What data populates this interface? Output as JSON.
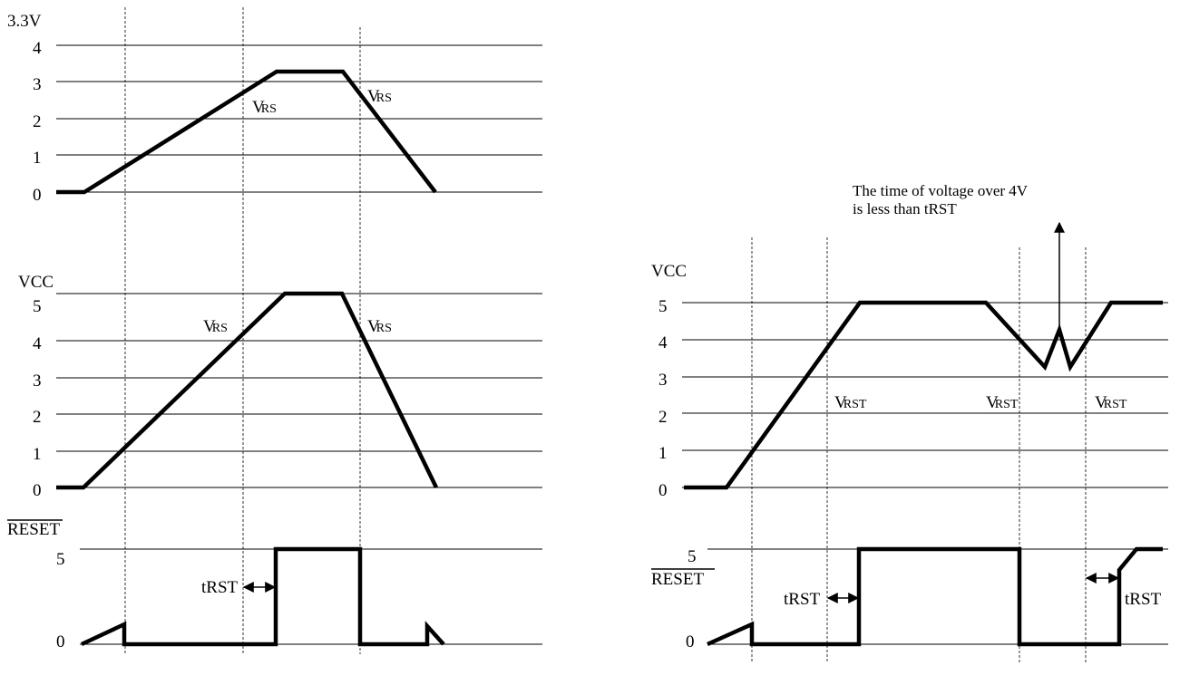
{
  "left": {
    "top_panel": {
      "axis_title": "3.3V",
      "ticks": [
        "4",
        "3",
        "2",
        "1",
        "0"
      ],
      "markers": [
        "V",
        "V"
      ],
      "marker_subs": [
        "RS",
        "RS"
      ]
    },
    "mid_panel": {
      "axis_title": "VCC",
      "ticks": [
        "5",
        "4",
        "3",
        "2",
        "1",
        "0"
      ],
      "markers": [
        "V",
        "V"
      ],
      "marker_subs": [
        "RS",
        "RS"
      ]
    },
    "reset_panel": {
      "axis_title": "RESET",
      "ticks": [
        "5",
        "0"
      ],
      "timing_label": "tRST"
    }
  },
  "right": {
    "annotation_line1": "The time of voltage over 4V",
    "annotation_line2": "is less than tRST",
    "vcc_panel": {
      "axis_title": "VCC",
      "ticks": [
        "5",
        "4",
        "3",
        "2",
        "1",
        "0"
      ],
      "markers": [
        "V",
        "V",
        "V"
      ],
      "marker_subs": [
        "RST",
        "RST",
        "RST"
      ]
    },
    "reset_panel": {
      "axis_title": "RESET",
      "ticks": [
        "5",
        "0"
      ],
      "timing_labels": [
        "tRST",
        "tRST"
      ]
    }
  },
  "colors": {
    "ink": "#000000",
    "background": "#ffffff"
  }
}
